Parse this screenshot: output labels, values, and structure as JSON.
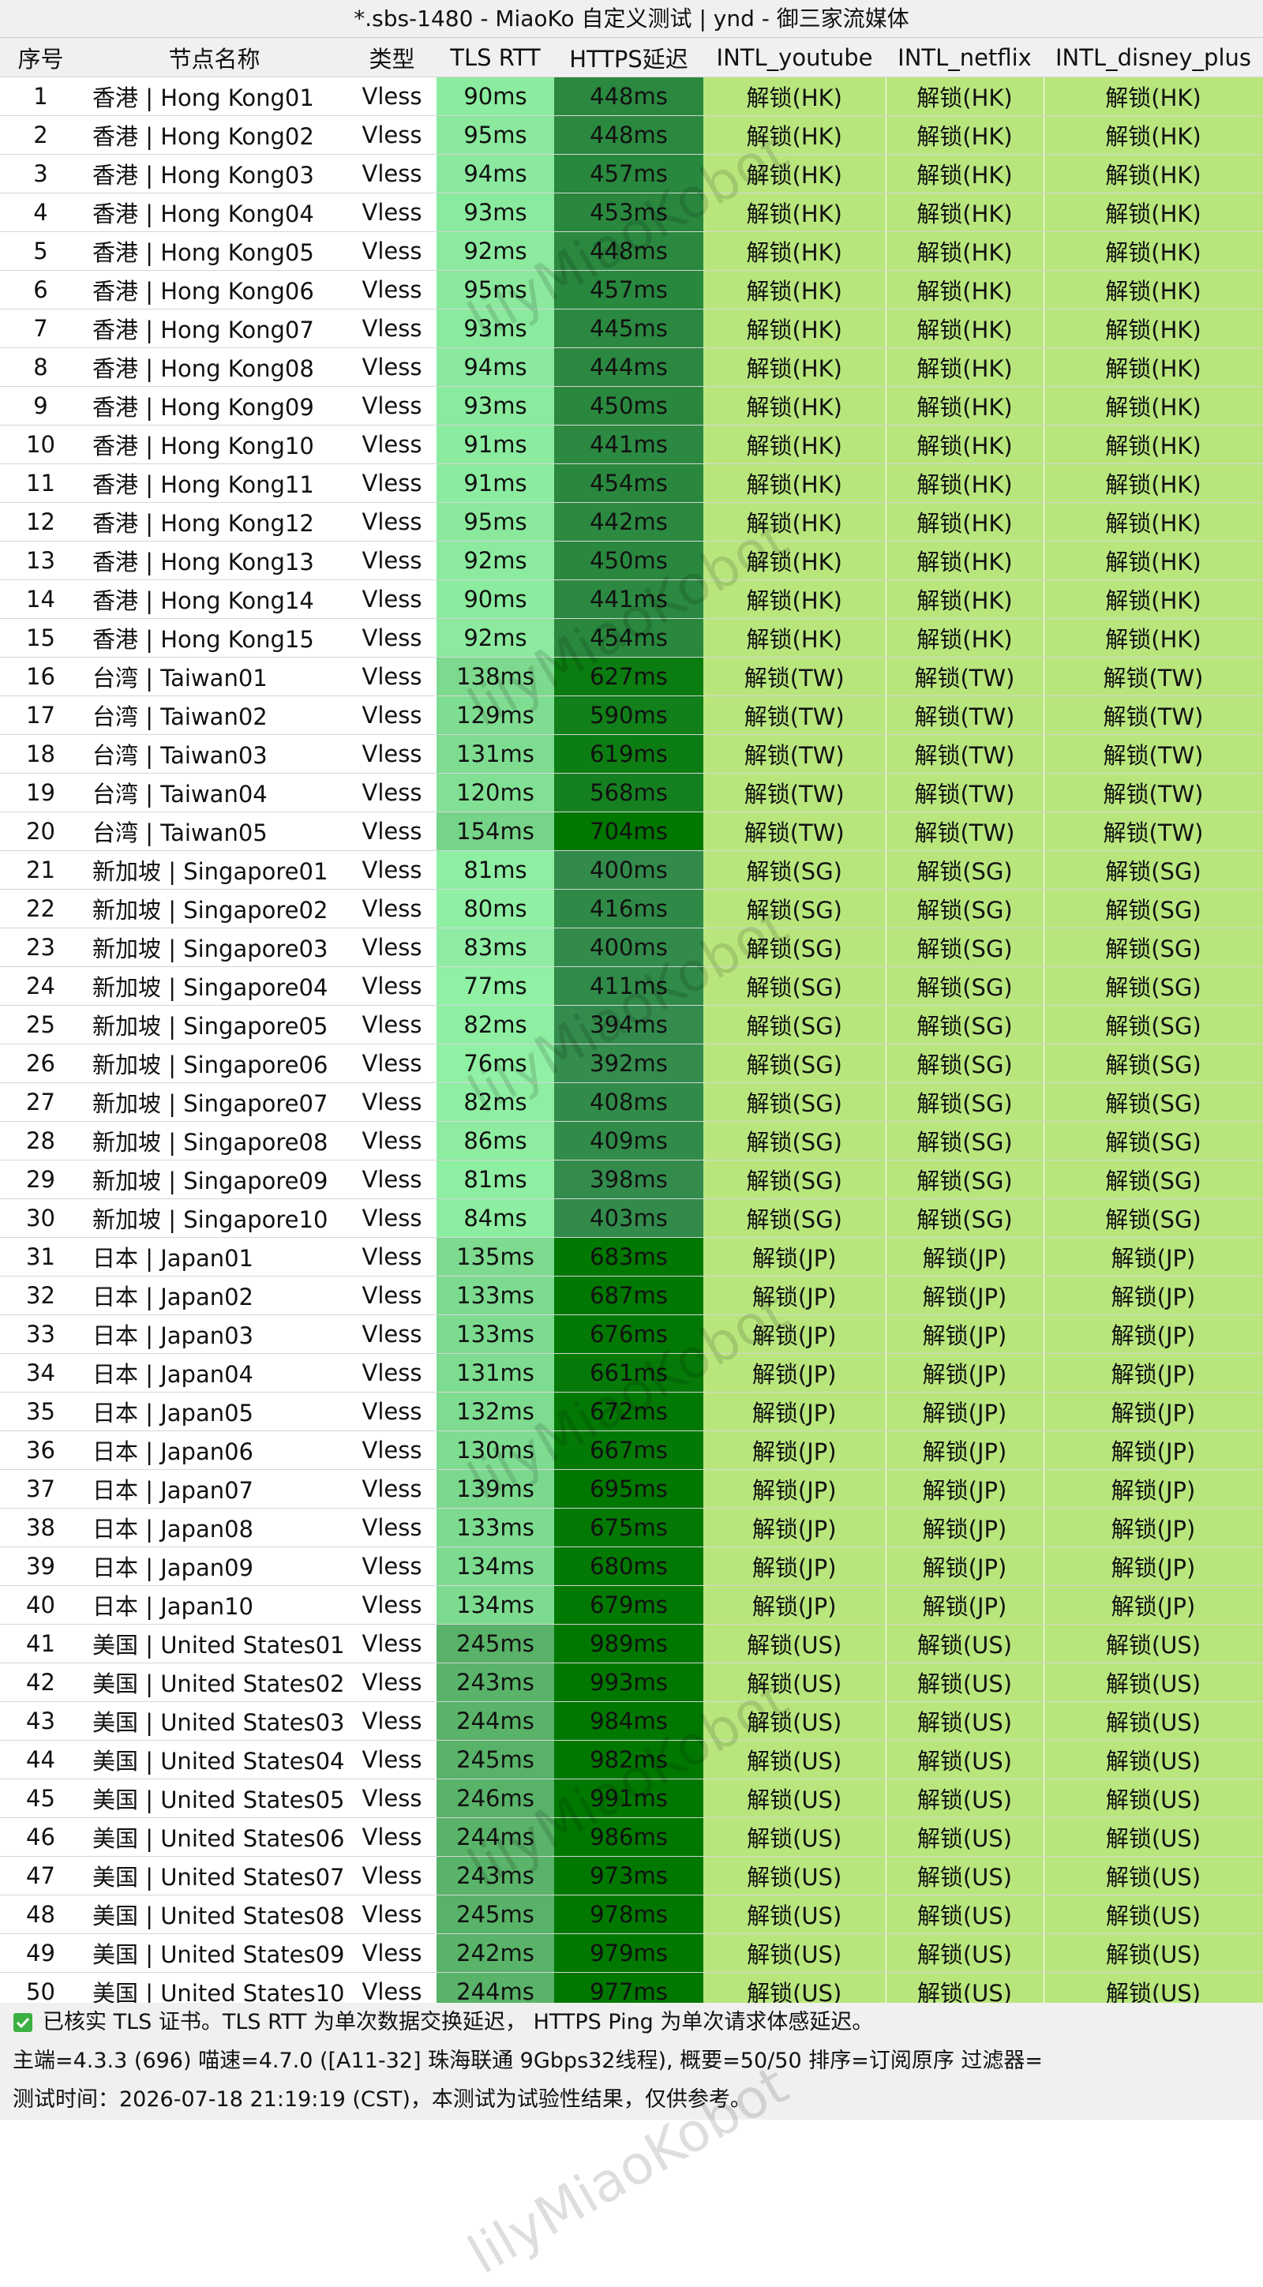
{
  "title": "*.sbs-1480 - MiaoKo 自定义测试 | ynd - 御三家流媒体",
  "watermark": "lilyMiaoKobot",
  "table": {
    "header": [
      "序号",
      "节点名称",
      "类型",
      "TLS RTT",
      "HTTPS延迟",
      "INTL_youtube",
      "INTL_netflix",
      "INTL_disney_plus"
    ],
    "rows": [
      [
        "1",
        "香港 | Hong Kong01",
        "Vless",
        "90ms",
        "448ms",
        "解锁(HK)",
        "解锁(HK)",
        "解锁(HK)"
      ],
      [
        "2",
        "香港 | Hong Kong02",
        "Vless",
        "95ms",
        "448ms",
        "解锁(HK)",
        "解锁(HK)",
        "解锁(HK)"
      ],
      [
        "3",
        "香港 | Hong Kong03",
        "Vless",
        "94ms",
        "457ms",
        "解锁(HK)",
        "解锁(HK)",
        "解锁(HK)"
      ],
      [
        "4",
        "香港 | Hong Kong04",
        "Vless",
        "93ms",
        "453ms",
        "解锁(HK)",
        "解锁(HK)",
        "解锁(HK)"
      ],
      [
        "5",
        "香港 | Hong Kong05",
        "Vless",
        "92ms",
        "448ms",
        "解锁(HK)",
        "解锁(HK)",
        "解锁(HK)"
      ],
      [
        "6",
        "香港 | Hong Kong06",
        "Vless",
        "95ms",
        "457ms",
        "解锁(HK)",
        "解锁(HK)",
        "解锁(HK)"
      ],
      [
        "7",
        "香港 | Hong Kong07",
        "Vless",
        "93ms",
        "445ms",
        "解锁(HK)",
        "解锁(HK)",
        "解锁(HK)"
      ],
      [
        "8",
        "香港 | Hong Kong08",
        "Vless",
        "94ms",
        "444ms",
        "解锁(HK)",
        "解锁(HK)",
        "解锁(HK)"
      ],
      [
        "9",
        "香港 | Hong Kong09",
        "Vless",
        "93ms",
        "450ms",
        "解锁(HK)",
        "解锁(HK)",
        "解锁(HK)"
      ],
      [
        "10",
        "香港 | Hong Kong10",
        "Vless",
        "91ms",
        "441ms",
        "解锁(HK)",
        "解锁(HK)",
        "解锁(HK)"
      ],
      [
        "11",
        "香港 | Hong Kong11",
        "Vless",
        "91ms",
        "454ms",
        "解锁(HK)",
        "解锁(HK)",
        "解锁(HK)"
      ],
      [
        "12",
        "香港 | Hong Kong12",
        "Vless",
        "95ms",
        "442ms",
        "解锁(HK)",
        "解锁(HK)",
        "解锁(HK)"
      ],
      [
        "13",
        "香港 | Hong Kong13",
        "Vless",
        "92ms",
        "450ms",
        "解锁(HK)",
        "解锁(HK)",
        "解锁(HK)"
      ],
      [
        "14",
        "香港 | Hong Kong14",
        "Vless",
        "90ms",
        "441ms",
        "解锁(HK)",
        "解锁(HK)",
        "解锁(HK)"
      ],
      [
        "15",
        "香港 | Hong Kong15",
        "Vless",
        "92ms",
        "454ms",
        "解锁(HK)",
        "解锁(HK)",
        "解锁(HK)"
      ],
      [
        "16",
        "台湾 | Taiwan01",
        "Vless",
        "138ms",
        "627ms",
        "解锁(TW)",
        "解锁(TW)",
        "解锁(TW)"
      ],
      [
        "17",
        "台湾 | Taiwan02",
        "Vless",
        "129ms",
        "590ms",
        "解锁(TW)",
        "解锁(TW)",
        "解锁(TW)"
      ],
      [
        "18",
        "台湾 | Taiwan03",
        "Vless",
        "131ms",
        "619ms",
        "解锁(TW)",
        "解锁(TW)",
        "解锁(TW)"
      ],
      [
        "19",
        "台湾 | Taiwan04",
        "Vless",
        "120ms",
        "568ms",
        "解锁(TW)",
        "解锁(TW)",
        "解锁(TW)"
      ],
      [
        "20",
        "台湾 | Taiwan05",
        "Vless",
        "154ms",
        "704ms",
        "解锁(TW)",
        "解锁(TW)",
        "解锁(TW)"
      ],
      [
        "21",
        "新加坡 | Singapore01",
        "Vless",
        "81ms",
        "400ms",
        "解锁(SG)",
        "解锁(SG)",
        "解锁(SG)"
      ],
      [
        "22",
        "新加坡 | Singapore02",
        "Vless",
        "80ms",
        "416ms",
        "解锁(SG)",
        "解锁(SG)",
        "解锁(SG)"
      ],
      [
        "23",
        "新加坡 | Singapore03",
        "Vless",
        "83ms",
        "400ms",
        "解锁(SG)",
        "解锁(SG)",
        "解锁(SG)"
      ],
      [
        "24",
        "新加坡 | Singapore04",
        "Vless",
        "77ms",
        "411ms",
        "解锁(SG)",
        "解锁(SG)",
        "解锁(SG)"
      ],
      [
        "25",
        "新加坡 | Singapore05",
        "Vless",
        "82ms",
        "394ms",
        "解锁(SG)",
        "解锁(SG)",
        "解锁(SG)"
      ],
      [
        "26",
        "新加坡 | Singapore06",
        "Vless",
        "76ms",
        "392ms",
        "解锁(SG)",
        "解锁(SG)",
        "解锁(SG)"
      ],
      [
        "27",
        "新加坡 | Singapore07",
        "Vless",
        "82ms",
        "408ms",
        "解锁(SG)",
        "解锁(SG)",
        "解锁(SG)"
      ],
      [
        "28",
        "新加坡 | Singapore08",
        "Vless",
        "86ms",
        "409ms",
        "解锁(SG)",
        "解锁(SG)",
        "解锁(SG)"
      ],
      [
        "29",
        "新加坡 | Singapore09",
        "Vless",
        "81ms",
        "398ms",
        "解锁(SG)",
        "解锁(SG)",
        "解锁(SG)"
      ],
      [
        "30",
        "新加坡 | Singapore10",
        "Vless",
        "84ms",
        "403ms",
        "解锁(SG)",
        "解锁(SG)",
        "解锁(SG)"
      ],
      [
        "31",
        "日本 | Japan01",
        "Vless",
        "135ms",
        "683ms",
        "解锁(JP)",
        "解锁(JP)",
        "解锁(JP)"
      ],
      [
        "32",
        "日本 | Japan02",
        "Vless",
        "133ms",
        "687ms",
        "解锁(JP)",
        "解锁(JP)",
        "解锁(JP)"
      ],
      [
        "33",
        "日本 | Japan03",
        "Vless",
        "133ms",
        "676ms",
        "解锁(JP)",
        "解锁(JP)",
        "解锁(JP)"
      ],
      [
        "34",
        "日本 | Japan04",
        "Vless",
        "131ms",
        "661ms",
        "解锁(JP)",
        "解锁(JP)",
        "解锁(JP)"
      ],
      [
        "35",
        "日本 | Japan05",
        "Vless",
        "132ms",
        "672ms",
        "解锁(JP)",
        "解锁(JP)",
        "解锁(JP)"
      ],
      [
        "36",
        "日本 | Japan06",
        "Vless",
        "130ms",
        "667ms",
        "解锁(JP)",
        "解锁(JP)",
        "解锁(JP)"
      ],
      [
        "37",
        "日本 | Japan07",
        "Vless",
        "139ms",
        "695ms",
        "解锁(JP)",
        "解锁(JP)",
        "解锁(JP)"
      ],
      [
        "38",
        "日本 | Japan08",
        "Vless",
        "133ms",
        "675ms",
        "解锁(JP)",
        "解锁(JP)",
        "解锁(JP)"
      ],
      [
        "39",
        "日本 | Japan09",
        "Vless",
        "134ms",
        "680ms",
        "解锁(JP)",
        "解锁(JP)",
        "解锁(JP)"
      ],
      [
        "40",
        "日本 | Japan10",
        "Vless",
        "134ms",
        "679ms",
        "解锁(JP)",
        "解锁(JP)",
        "解锁(JP)"
      ],
      [
        "41",
        "美国 | United States01",
        "Vless",
        "245ms",
        "989ms",
        "解锁(US)",
        "解锁(US)",
        "解锁(US)"
      ],
      [
        "42",
        "美国 | United States02",
        "Vless",
        "243ms",
        "993ms",
        "解锁(US)",
        "解锁(US)",
        "解锁(US)"
      ],
      [
        "43",
        "美国 | United States03",
        "Vless",
        "244ms",
        "984ms",
        "解锁(US)",
        "解锁(US)",
        "解锁(US)"
      ],
      [
        "44",
        "美国 | United States04",
        "Vless",
        "245ms",
        "982ms",
        "解锁(US)",
        "解锁(US)",
        "解锁(US)"
      ],
      [
        "45",
        "美国 | United States05",
        "Vless",
        "246ms",
        "991ms",
        "解锁(US)",
        "解锁(US)",
        "解锁(US)"
      ],
      [
        "46",
        "美国 | United States06",
        "Vless",
        "244ms",
        "986ms",
        "解锁(US)",
        "解锁(US)",
        "解锁(US)"
      ],
      [
        "47",
        "美国 | United States07",
        "Vless",
        "243ms",
        "973ms",
        "解锁(US)",
        "解锁(US)",
        "解锁(US)"
      ],
      [
        "48",
        "美国 | United States08",
        "Vless",
        "245ms",
        "978ms",
        "解锁(US)",
        "解锁(US)",
        "解锁(US)"
      ],
      [
        "49",
        "美国 | United States09",
        "Vless",
        "242ms",
        "979ms",
        "解锁(US)",
        "解锁(US)",
        "解锁(US)"
      ],
      [
        "50",
        "美国 | United States10",
        "Vless",
        "244ms",
        "977ms",
        "解锁(US)",
        "解锁(US)",
        "解锁(US)"
      ]
    ]
  },
  "footer": [
    "已核实 TLS 证书。TLS RTT 为单次数据交换延迟， HTTPS Ping 为单次请求体感延迟。",
    "主端=4.3.3 (696) 喵速=4.7.0 ([A11-32] 珠海联通 9Gbps32线程), 概要=50/50 排序=订阅原序 过滤器=",
    "测试时间：2026-07-18 21:19:19 (CST)，本测试为试验性结果，仅供参考。"
  ]
}
